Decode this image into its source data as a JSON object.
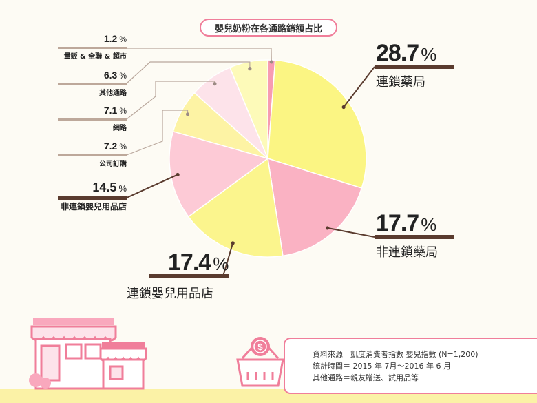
{
  "title": "嬰兒奶粉在各通路銷額占比",
  "unit_symbol": "%",
  "chart_data": {
    "type": "pie",
    "title": "嬰兒奶粉在各通路銷額占比",
    "slices": [
      {
        "label": "量販 & 全聯 & 超市",
        "value": 1.2,
        "color": "#f79bb2"
      },
      {
        "label": "連鎖藥局",
        "value": 28.7,
        "color": "#fbf583"
      },
      {
        "label": "非連鎖藥局",
        "value": 17.7,
        "color": "#fab2c3"
      },
      {
        "label": "連鎖嬰兒用品店",
        "value": 17.4,
        "color": "#fbf58d"
      },
      {
        "label": "非連鎖嬰兒用品店",
        "value": 14.5,
        "color": "#fdcad6"
      },
      {
        "label": "公司訂購",
        "value": 7.2,
        "color": "#fdf3a4"
      },
      {
        "label": "網路",
        "value": 7.1,
        "color": "#fde3ea"
      },
      {
        "label": "其他通路",
        "value": 6.3,
        "color": "#fdfab9"
      }
    ],
    "accent_color": "#5a3b2e",
    "highlight_color": "#f07e9a"
  },
  "labels": {
    "chain_pharmacy": {
      "value": "28.7",
      "name": "連鎖藥局"
    },
    "nonchain_pharmacy": {
      "value": "17.7",
      "name": "非連鎖藥局"
    },
    "chain_baby": {
      "value": "17.4",
      "name": "連鎖嬰兒用品店"
    },
    "nonchain_baby": {
      "value": "14.5",
      "name": "非連鎖嬰兒用品店"
    },
    "company": {
      "value": "7.2",
      "name": "公司訂購"
    },
    "online": {
      "value": "7.1",
      "name": "網路"
    },
    "other": {
      "value": "6.3",
      "name": "其他通路"
    },
    "mass": {
      "value": "1.2",
      "name": "量販 & 全聯 & 超市"
    }
  },
  "source": {
    "line1": "資料來源＝凱度消費者指數 嬰兒指數 (N=1,200)",
    "line2": "統計時間＝ 2015 年 7月～2016 年 6 月",
    "line3": "其他通路＝親友贈送、試用品等"
  },
  "icons": {
    "store": "storefront-icon",
    "basket": "shopping-basket-icon",
    "coin": "dollar-coin-icon"
  }
}
